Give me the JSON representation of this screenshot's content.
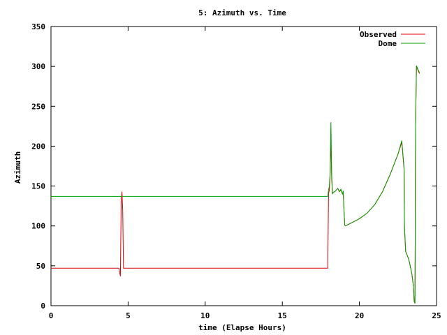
{
  "chart_data": {
    "type": "line",
    "title": "5: Azimuth vs. Time",
    "xlabel": "time (Elapse Hours)",
    "ylabel": "Azimuth",
    "xlim": [
      0,
      25
    ],
    "ylim": [
      0,
      350
    ],
    "xticks": [
      0,
      5,
      10,
      15,
      20,
      25
    ],
    "yticks": [
      0,
      50,
      100,
      150,
      200,
      250,
      300,
      350
    ],
    "grid": false,
    "legend_position": "top-right",
    "series": [
      {
        "name": "Observed",
        "color": "#e00000",
        "x": [
          0,
          4.4,
          4.45,
          4.5,
          4.55,
          4.6,
          4.65,
          4.7,
          4.75,
          4.8,
          17.95,
          18.0,
          18.05,
          18.1,
          18.15,
          18.2,
          18.25,
          18.3,
          18.4,
          18.5,
          18.6,
          18.7,
          18.8,
          18.9,
          18.95,
          19.0,
          19.05,
          19.1,
          19.2,
          19.5,
          20.0,
          20.5,
          21.0,
          21.5,
          22.0,
          22.5,
          22.75,
          22.9,
          22.92,
          23.0,
          23.2,
          23.4,
          23.5,
          23.55,
          23.6,
          23.62,
          23.64,
          23.7,
          23.8,
          23.9
        ],
        "y": [
          47,
          47,
          42,
          37,
          130,
          143,
          120,
          47,
          47,
          47,
          47,
          140,
          145,
          160,
          210,
          160,
          140,
          142,
          143,
          145,
          147,
          143,
          145,
          140,
          143,
          120,
          101,
          100,
          101,
          104,
          109,
          116,
          127,
          143,
          165,
          190,
          205,
          170,
          98,
          68,
          58,
          40,
          25,
          5,
          3,
          80,
          226,
          300,
          295,
          291
        ]
      },
      {
        "name": "Dome",
        "color": "#00a000",
        "x": [
          0,
          17.95,
          18.0,
          18.05,
          18.1,
          18.15,
          18.2,
          18.25,
          18.3,
          18.4,
          18.5,
          18.6,
          18.7,
          18.8,
          18.9,
          18.95,
          19.0,
          19.05,
          19.1,
          19.2,
          19.5,
          20.0,
          20.5,
          21.0,
          21.5,
          22.0,
          22.5,
          22.75,
          22.9,
          22.92,
          23.0,
          23.2,
          23.4,
          23.5,
          23.55,
          23.6,
          23.62,
          23.64,
          23.7,
          23.8,
          23.9
        ],
        "y": [
          137,
          137,
          145,
          150,
          165,
          230,
          165,
          140,
          142,
          143,
          145,
          147,
          143,
          146,
          140,
          144,
          120,
          101,
          100,
          101,
          104,
          109,
          116,
          127,
          143,
          165,
          190,
          207,
          172,
          100,
          68,
          58,
          40,
          25,
          5,
          3,
          80,
          227,
          301,
          296,
          292
        ]
      }
    ]
  }
}
